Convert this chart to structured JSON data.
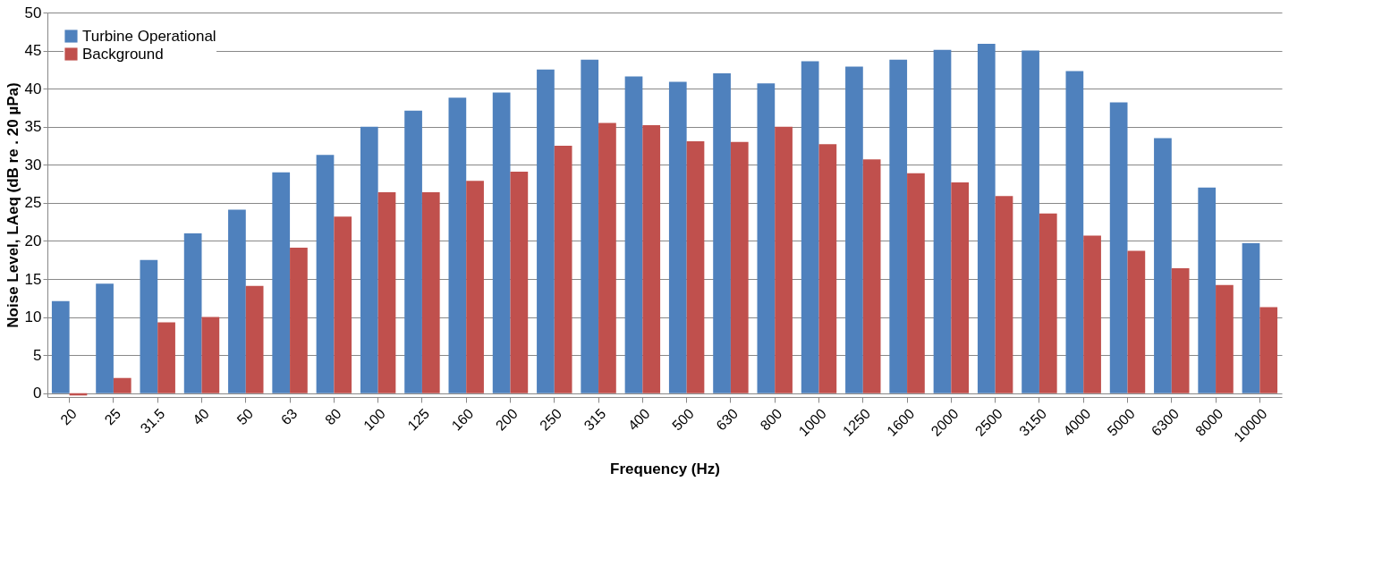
{
  "chart_data": {
    "type": "bar",
    "xlabel": "Frequency (Hz)",
    "ylabel": "Noise Level, LAeq (dB re . 20 µPa)",
    "categories": [
      "20",
      "25",
      "31.5",
      "40",
      "50",
      "63",
      "80",
      "100",
      "125",
      "160",
      "200",
      "250",
      "315",
      "400",
      "500",
      "630",
      "800",
      "1000",
      "1250",
      "1600",
      "2000",
      "2500",
      "3150",
      "4000",
      "5000",
      "6300",
      "8000",
      "10000"
    ],
    "series": [
      {
        "name": "Turbine Operational",
        "color": "#4f81bd",
        "values": [
          12.1,
          14.4,
          17.5,
          21.0,
          24.1,
          29.0,
          31.3,
          35.0,
          37.1,
          38.8,
          39.5,
          42.5,
          43.8,
          41.6,
          40.9,
          42.0,
          40.7,
          43.6,
          42.9,
          43.8,
          45.1,
          45.9,
          45.0,
          42.3,
          38.2,
          33.5,
          27.0,
          19.7
        ]
      },
      {
        "name": "Background",
        "color": "#c0504d",
        "values": [
          -0.3,
          2.0,
          9.3,
          10.0,
          14.1,
          19.1,
          23.2,
          26.4,
          26.4,
          27.9,
          29.1,
          32.5,
          35.5,
          35.2,
          33.1,
          33.0,
          35.0,
          32.7,
          30.7,
          28.9,
          27.7,
          25.9,
          23.6,
          20.7,
          18.7,
          16.4,
          14.2,
          11.3
        ]
      }
    ],
    "ylim": [
      -0.5,
      50
    ],
    "yticks": [
      0,
      5,
      10,
      15,
      20,
      25,
      30,
      35,
      40,
      45,
      50
    ],
    "grid": "y",
    "legend": "top left"
  }
}
